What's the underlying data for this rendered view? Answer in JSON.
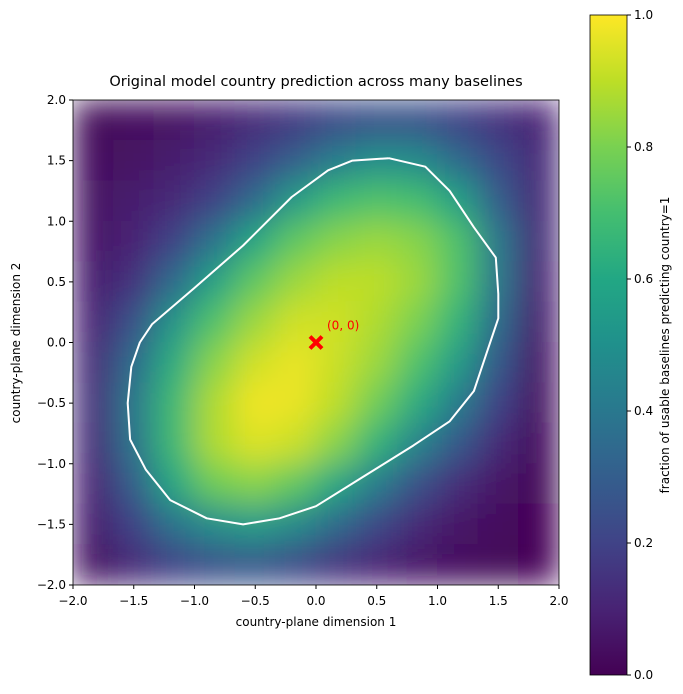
{
  "chart_data": {
    "type": "heatmap",
    "title": "Original model country prediction across many baselines",
    "xlabel": "country-plane dimension 1",
    "ylabel": "country-plane dimension 2",
    "colorbar_label": "fraction of usable baselines predicting country=1",
    "colormap": "viridis",
    "xlim": [
      -2,
      2
    ],
    "ylim": [
      -2,
      2
    ],
    "clim": [
      0,
      1
    ],
    "xticks": [
      {
        "value": -2,
        "label": "−2.0"
      },
      {
        "value": -1.5,
        "label": "−1.5"
      },
      {
        "value": -1,
        "label": "−1.0"
      },
      {
        "value": -0.5,
        "label": "−0.5"
      },
      {
        "value": 0,
        "label": "0.0"
      },
      {
        "value": 0.5,
        "label": "0.5"
      },
      {
        "value": 1,
        "label": "1.0"
      },
      {
        "value": 1.5,
        "label": "1.5"
      },
      {
        "value": 2,
        "label": "2.0"
      }
    ],
    "yticks": [
      {
        "value": -2,
        "label": "−2.0"
      },
      {
        "value": -1.5,
        "label": "−1.5"
      },
      {
        "value": -1,
        "label": "−1.0"
      },
      {
        "value": -0.5,
        "label": "−0.5"
      },
      {
        "value": 0,
        "label": "0.0"
      },
      {
        "value": 0.5,
        "label": "0.5"
      },
      {
        "value": 1,
        "label": "1.0"
      },
      {
        "value": 1.5,
        "label": "1.5"
      },
      {
        "value": 2,
        "label": "2.0"
      }
    ],
    "cticks": [
      {
        "value": 0,
        "label": "0.0"
      },
      {
        "value": 0.2,
        "label": "0.2"
      },
      {
        "value": 0.4,
        "label": "0.4"
      },
      {
        "value": 0.6,
        "label": "0.6"
      },
      {
        "value": 0.8,
        "label": "0.8"
      },
      {
        "value": 1,
        "label": "1.0"
      }
    ],
    "x": [
      -1.833,
      -1.5,
      -1.167,
      -0.833,
      -0.5,
      -0.167,
      0.167,
      0.5,
      0.833,
      1.167,
      1.5,
      1.833
    ],
    "y": [
      1.833,
      1.5,
      1.167,
      0.833,
      0.5,
      0.167,
      -0.167,
      -0.5,
      -0.833,
      -1.167,
      -1.5,
      -1.833
    ],
    "z": [
      [
        0.02,
        0.03,
        0.05,
        0.08,
        0.12,
        0.17,
        0.22,
        0.25,
        0.25,
        0.2,
        0.15,
        0.1
      ],
      [
        0.03,
        0.05,
        0.08,
        0.12,
        0.2,
        0.3,
        0.42,
        0.5,
        0.48,
        0.35,
        0.22,
        0.12
      ],
      [
        0.05,
        0.08,
        0.12,
        0.2,
        0.35,
        0.55,
        0.68,
        0.72,
        0.7,
        0.58,
        0.3,
        0.12
      ],
      [
        0.06,
        0.1,
        0.2,
        0.38,
        0.6,
        0.75,
        0.82,
        0.85,
        0.82,
        0.72,
        0.4,
        0.12
      ],
      [
        0.08,
        0.15,
        0.35,
        0.58,
        0.75,
        0.85,
        0.9,
        0.9,
        0.85,
        0.72,
        0.4,
        0.1
      ],
      [
        0.1,
        0.25,
        0.52,
        0.72,
        0.85,
        0.93,
        0.93,
        0.88,
        0.8,
        0.65,
        0.35,
        0.08
      ],
      [
        0.12,
        0.35,
        0.62,
        0.82,
        0.93,
        0.97,
        0.92,
        0.85,
        0.72,
        0.55,
        0.28,
        0.06
      ],
      [
        0.13,
        0.4,
        0.68,
        0.88,
        0.98,
        0.97,
        0.9,
        0.78,
        0.62,
        0.42,
        0.2,
        0.05
      ],
      [
        0.12,
        0.38,
        0.68,
        0.88,
        0.95,
        0.92,
        0.82,
        0.65,
        0.45,
        0.28,
        0.12,
        0.03
      ],
      [
        0.1,
        0.3,
        0.6,
        0.78,
        0.82,
        0.75,
        0.6,
        0.42,
        0.25,
        0.13,
        0.06,
        0.02
      ],
      [
        0.08,
        0.2,
        0.38,
        0.5,
        0.55,
        0.48,
        0.35,
        0.22,
        0.12,
        0.06,
        0.03,
        0.01
      ],
      [
        0.05,
        0.12,
        0.2,
        0.25,
        0.27,
        0.22,
        0.15,
        0.1,
        0.06,
        0.03,
        0.02,
        0.01
      ]
    ],
    "contour": {
      "color": "#ffffff",
      "x": [
        0.6,
        0.9,
        1.1,
        1.3,
        1.48,
        1.5,
        1.5,
        1.4,
        1.3,
        1.1,
        0.8,
        0.4,
        0,
        -0.3,
        -0.6,
        -0.9,
        -1.2,
        -1.4,
        -1.53,
        -1.55,
        -1.52,
        -1.45,
        -1.35,
        -1.0,
        -0.6,
        -0.2,
        0.1,
        0.3,
        0.6
      ],
      "y": [
        1.52,
        1.45,
        1.25,
        0.95,
        0.7,
        0.4,
        0.2,
        -0.1,
        -0.4,
        -0.65,
        -0.85,
        -1.1,
        -1.35,
        -1.45,
        -1.5,
        -1.45,
        -1.3,
        -1.05,
        -0.8,
        -0.5,
        -0.2,
        0,
        0.15,
        0.45,
        0.8,
        1.2,
        1.42,
        1.5,
        1.52
      ]
    },
    "marker": {
      "x": 0,
      "y": 0,
      "label": "(0, 0)",
      "color": "#ff0000"
    }
  }
}
